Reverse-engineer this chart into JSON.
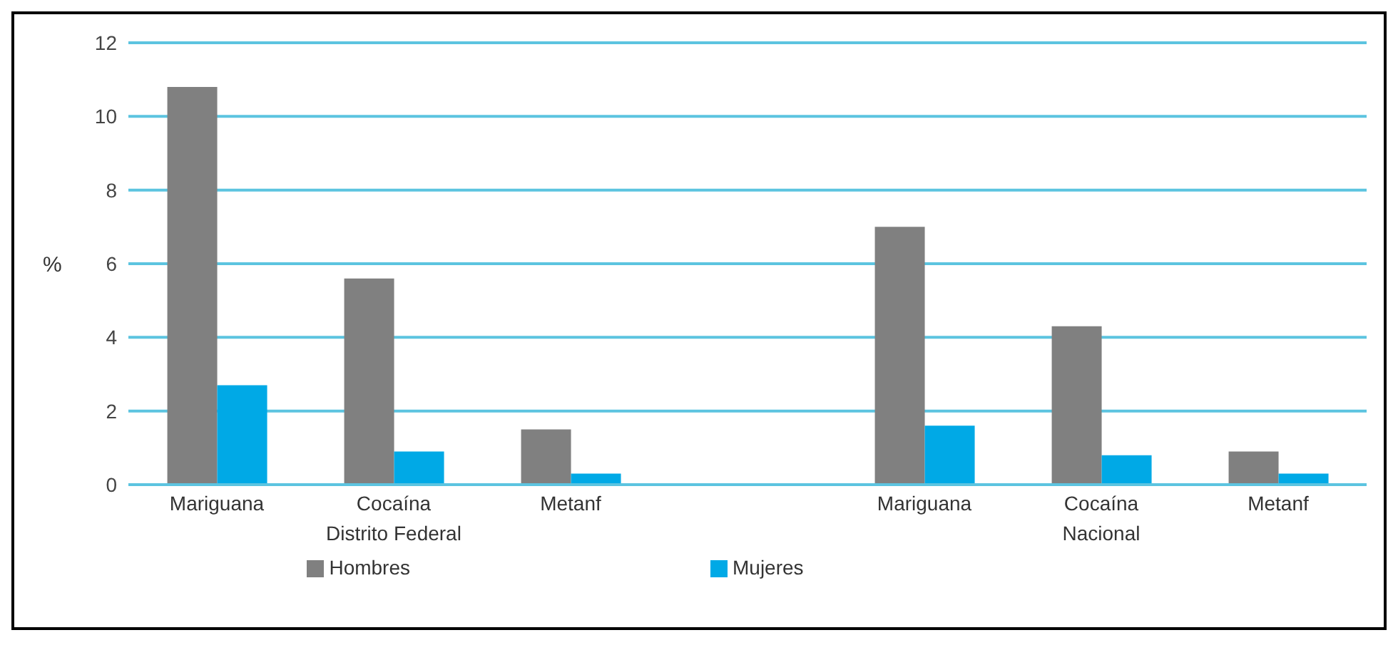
{
  "chart_data": {
    "type": "bar",
    "ylabel": "%",
    "categories": [
      "Mariguana",
      "Cocaína",
      "Metanf",
      null,
      "Mariguana",
      "Cocaína",
      "Metanf"
    ],
    "series": [
      {
        "name": "Hombres",
        "color": "#808080",
        "values": [
          10.8,
          5.6,
          1.5,
          null,
          7.0,
          4.3,
          0.9
        ]
      },
      {
        "name": "Mujeres",
        "color": "#00a9e6",
        "values": [
          2.7,
          0.9,
          0.3,
          null,
          1.6,
          0.8,
          0.3
        ]
      }
    ],
    "annotations": [
      "Distrito Federal",
      "Nacional"
    ],
    "ylim": [
      0,
      12
    ],
    "yticks": [
      0,
      2,
      4,
      6,
      8,
      10,
      12
    ],
    "grid": "y",
    "legend": "bottom"
  }
}
